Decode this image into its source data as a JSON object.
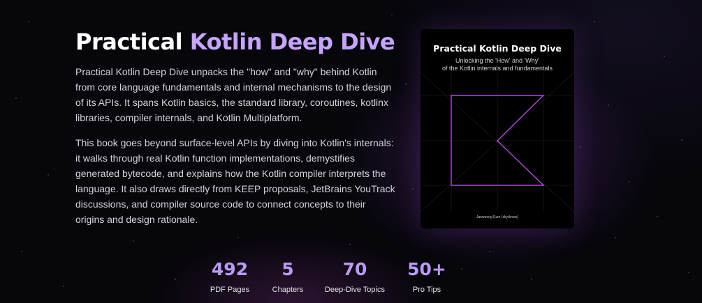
{
  "hero": {
    "title_white": "Practical",
    "title_accent": "Kotlin Deep Dive",
    "paragraphs": [
      "Practical Kotlin Deep Dive unpacks the \"how\" and \"why\" behind Kotlin from core language fundamentals and internal mechanisms to the design of its APIs. It spans Kotlin basics, the standard library, coroutines, kotlinx libraries, compiler internals, and Kotlin Multiplatform.",
      "This book goes beyond surface-level APIs by diving into Kotlin's internals: it walks through real Kotlin function implementations, demystifies generated bytecode, and explains how the Kotlin compiler interprets the language. It also draws directly from KEEP proposals, JetBrains YouTrack discussions, and compiler source code to connect concepts to their origins and design rationale."
    ]
  },
  "cover": {
    "title": "Practical Kotlin Deep Dive",
    "subtitle_line1": "Unlocking the 'How' and 'Why'",
    "subtitle_line2": "of the Kotlin internals and fundamentals",
    "author": "Jaewoong Eum (skydoves)"
  },
  "stats": [
    {
      "value": "492",
      "label": "PDF Pages"
    },
    {
      "value": "5",
      "label": "Chapters"
    },
    {
      "value": "70",
      "label": "Deep-Dive Topics"
    },
    {
      "value": "50+",
      "label": "Pro Tips"
    }
  ],
  "colors": {
    "accent": "#c6a4ff",
    "stat_accent": "#b99af5",
    "background": "#07060b",
    "cover_line": "#b14ad8"
  }
}
